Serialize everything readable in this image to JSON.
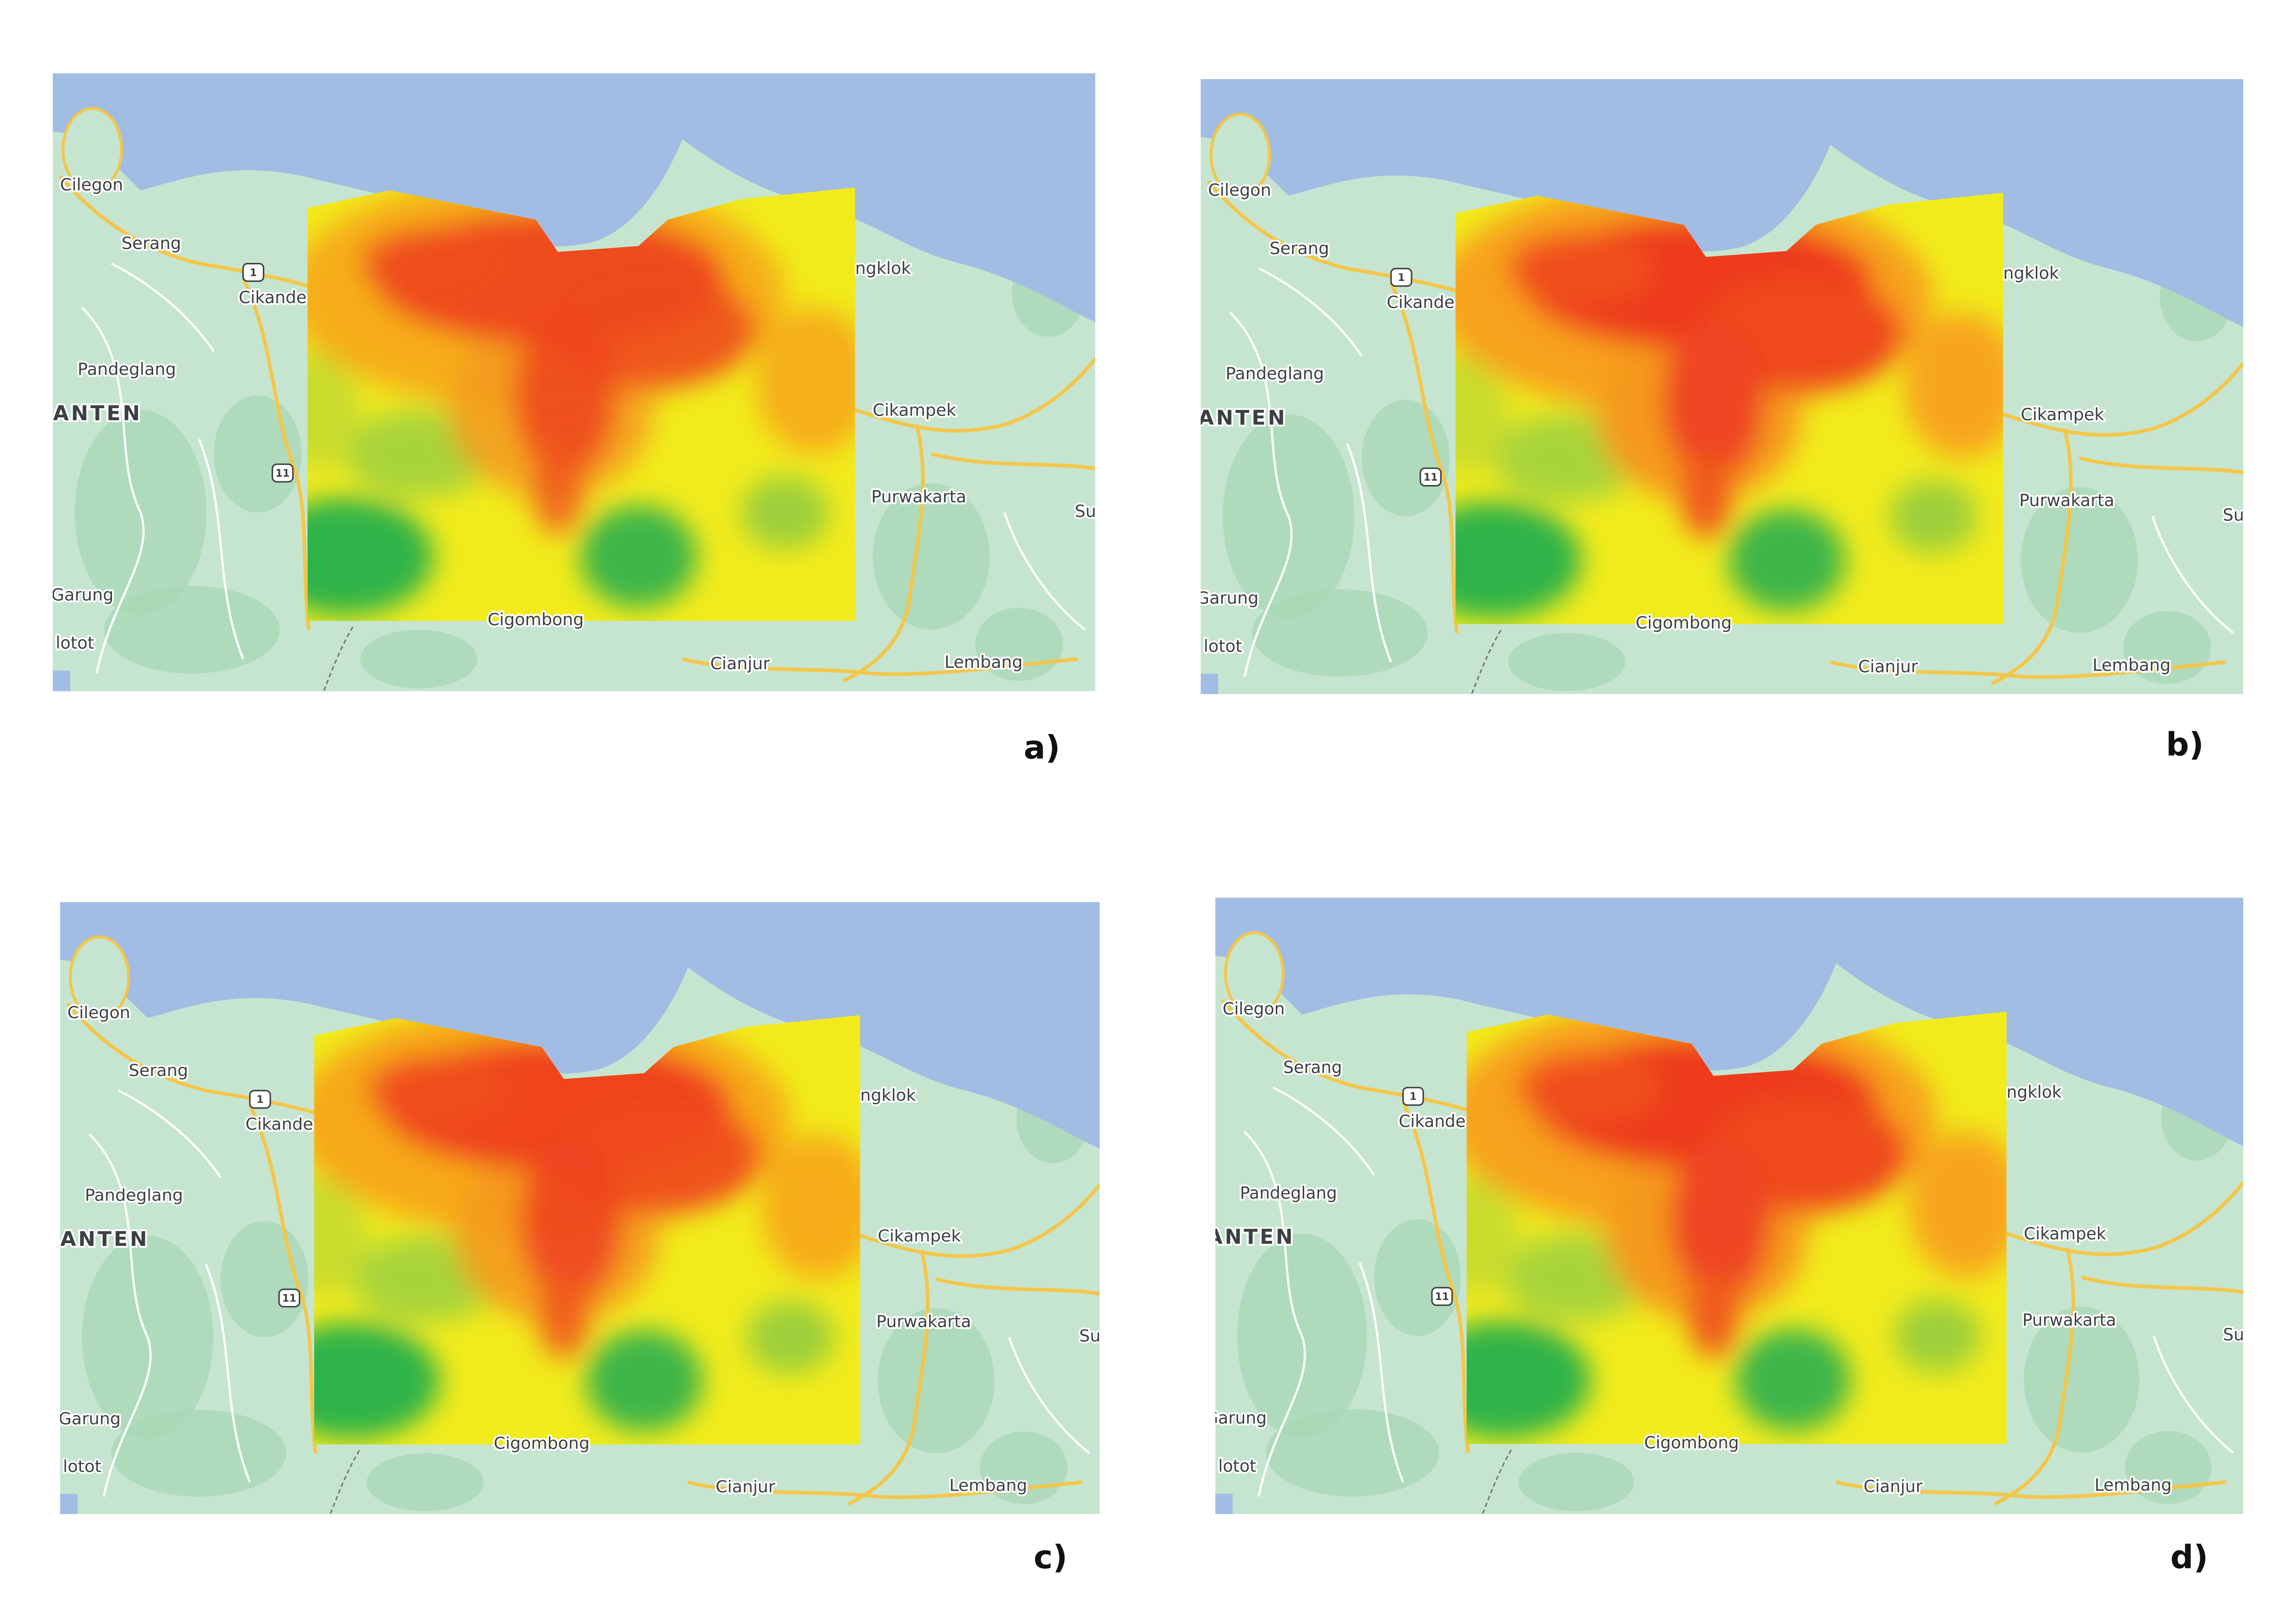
{
  "panels": [
    {
      "label": "a)"
    },
    {
      "label": "b)"
    },
    {
      "label": "c)"
    },
    {
      "label": "d)"
    }
  ],
  "map_labels": [
    "Cilegon",
    "Serang",
    "Cikande",
    "Pandeglang",
    "BANTEN",
    "Cikampek",
    "Purwakarta",
    "Su",
    "Garung",
    "lotot",
    "Cigombong",
    "Cianjur",
    "Lembang",
    "ngklok"
  ],
  "road_shields": [
    "1",
    "11"
  ]
}
